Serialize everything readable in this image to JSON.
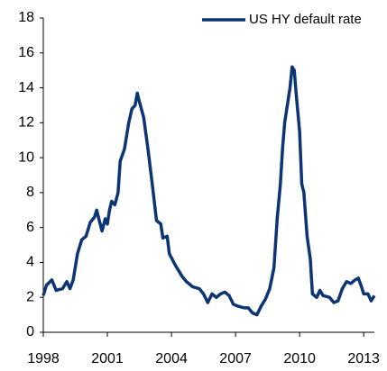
{
  "chart_data": {
    "type": "line",
    "x": [
      1998.0,
      1998.15,
      1998.4,
      1998.6,
      1998.9,
      1999.1,
      1999.25,
      1999.4,
      1999.6,
      1999.8,
      2000.0,
      2000.2,
      2000.4,
      2000.5,
      2000.6,
      2000.75,
      2000.9,
      2001.0,
      2001.1,
      2001.2,
      2001.35,
      2001.5,
      2001.6,
      2001.8,
      2002.0,
      2002.15,
      2002.3,
      2002.4,
      2002.5,
      2002.7,
      2002.9,
      2003.1,
      2003.3,
      2003.5,
      2003.6,
      2003.8,
      2003.9,
      2004.2,
      2004.5,
      2004.7,
      2005.0,
      2005.3,
      2005.5,
      2005.7,
      2005.9,
      2006.1,
      2006.3,
      2006.5,
      2006.7,
      2006.9,
      2007.1,
      2007.4,
      2007.6,
      2007.8,
      2008.0,
      2008.2,
      2008.4,
      2008.6,
      2008.8,
      2008.95,
      2009.1,
      2009.2,
      2009.3,
      2009.45,
      2009.55,
      2009.65,
      2009.75,
      2009.85,
      2010.0,
      2010.1,
      2010.2,
      2010.35,
      2010.5,
      2010.6,
      2010.8,
      2010.95,
      2011.1,
      2011.4,
      2011.6,
      2011.8,
      2012.0,
      2012.2,
      2012.4,
      2012.6,
      2012.75,
      2012.9,
      2013.0,
      2013.2,
      2013.35,
      2013.5
    ],
    "series": [
      {
        "name": "US HY default rate",
        "color": "#0d3574",
        "values": [
          2.1,
          2.7,
          3.0,
          2.4,
          2.5,
          2.9,
          2.5,
          3.0,
          4.5,
          5.3,
          5.5,
          6.3,
          6.6,
          7.0,
          6.5,
          5.8,
          6.5,
          6.2,
          7.0,
          7.5,
          7.3,
          8.0,
          9.8,
          10.5,
          12.0,
          12.8,
          13.0,
          13.7,
          13.2,
          12.3,
          10.5,
          8.5,
          6.4,
          6.2,
          5.4,
          5.5,
          4.5,
          3.8,
          3.2,
          2.9,
          2.6,
          2.5,
          2.2,
          1.7,
          2.2,
          2.0,
          2.2,
          2.3,
          2.1,
          1.6,
          1.5,
          1.4,
          1.4,
          1.1,
          1.0,
          1.5,
          1.9,
          2.5,
          3.7,
          6.5,
          8.5,
          10.5,
          12.0,
          13.2,
          14.0,
          15.2,
          15.0,
          13.5,
          11.5,
          8.5,
          8.0,
          5.5,
          4.2,
          2.2,
          2.0,
          2.4,
          2.1,
          2.0,
          1.7,
          1.8,
          2.5,
          2.9,
          2.8,
          3.0,
          3.1,
          2.6,
          2.2,
          2.2,
          1.8,
          2.1
        ]
      }
    ],
    "xlim": [
      1998,
      2013.5
    ],
    "xticks": [
      1998,
      2001,
      2004,
      2007,
      2010,
      2013
    ],
    "ylim": [
      0,
      18
    ],
    "yticks": [
      0,
      2,
      4,
      6,
      8,
      10,
      12,
      14,
      16,
      18
    ],
    "grid": false,
    "legend": "top-right"
  }
}
